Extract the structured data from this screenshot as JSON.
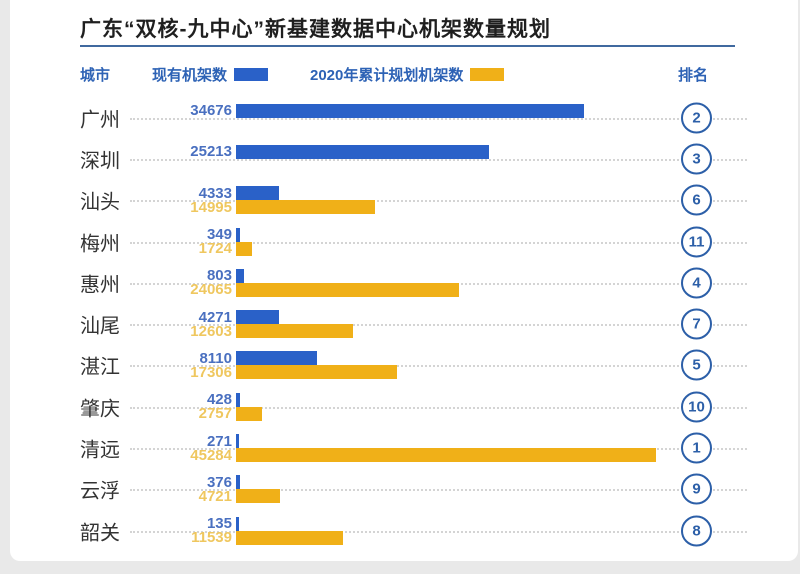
{
  "page": {
    "title": "广东“双核-九中心”新基建数据中心机架数量规划"
  },
  "header": {
    "city_label": "城市",
    "rank_label": "排名"
  },
  "legend": [
    {
      "label": "现有机架数",
      "color": "#2a61c8"
    },
    {
      "label": "2020年累计规划机架数",
      "color": "#f0b018"
    }
  ],
  "colors": {
    "existing_bar": "#2a61c8",
    "planned_bar": "#f0b018",
    "existing_value_text": "#4a70c0",
    "planned_value_text": "#efc75f",
    "header_text": "#2d62b5",
    "rank_circle": "#2c5fa8",
    "title_underline": "#40699f",
    "dotted_leader": "#d4d4d4"
  },
  "chart_data": {
    "type": "bar",
    "orientation": "horizontal",
    "title": "广东“双核-九中心”新基建数据中心机架数量规划",
    "categories": [
      "广州",
      "深圳",
      "汕头",
      "梅州",
      "惠州",
      "汕尾",
      "湛江",
      "肇庆",
      "清远",
      "云浮",
      "韶关"
    ],
    "series": [
      {
        "name": "现有机架数",
        "color": "#2a61c8",
        "values": [
          34676,
          25213,
          4333,
          349,
          803,
          4271,
          8110,
          428,
          271,
          376,
          135
        ]
      },
      {
        "name": "2020年累计规划机架数",
        "color": "#f0b018",
        "values": [
          null,
          null,
          14995,
          1724,
          24065,
          12603,
          17306,
          2757,
          45284,
          4721,
          11539
        ]
      }
    ],
    "ranks": [
      2,
      3,
      6,
      11,
      4,
      7,
      5,
      10,
      1,
      9,
      8
    ],
    "xlabel": "",
    "ylabel": "",
    "xlim": [
      0,
      45284
    ],
    "grid": false,
    "legend_position": "top"
  }
}
